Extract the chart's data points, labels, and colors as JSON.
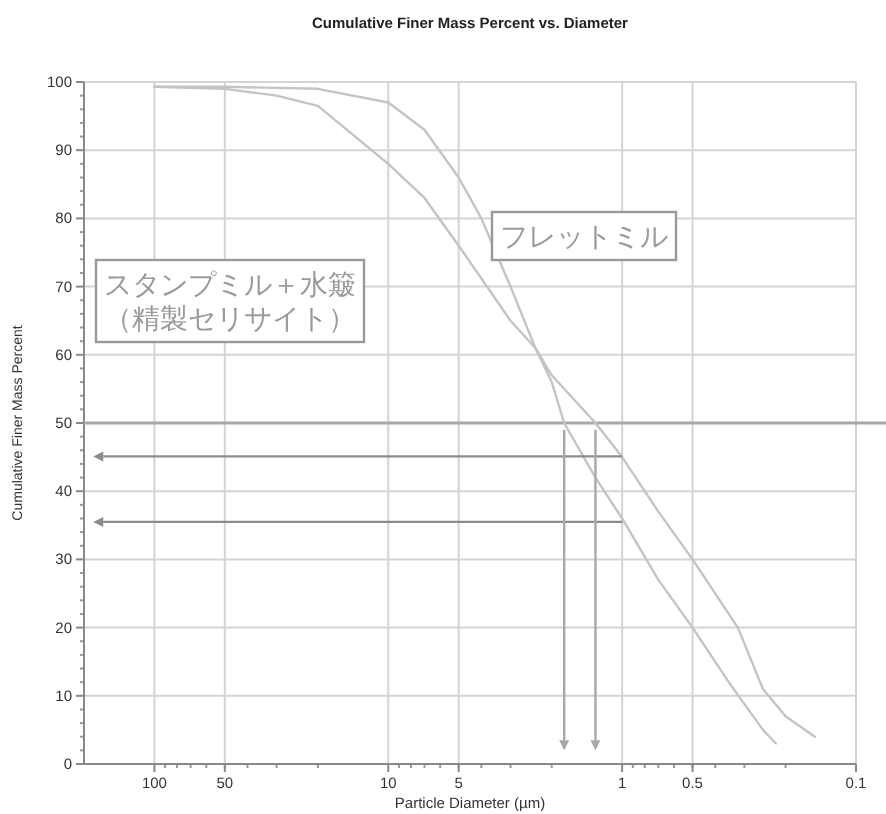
{
  "chart_data": {
    "type": "line",
    "title": "Cumulative Finer Mass Percent vs. Diameter",
    "xlabel": "Particle Diameter (µm)",
    "ylabel": "Cumulative Finer Mass Percent",
    "log": "x",
    "xlim": [
      200,
      0.1
    ],
    "xticks": [
      100,
      50,
      10,
      5,
      1,
      0.5,
      0.1
    ],
    "ylim": [
      0,
      100
    ],
    "yticks": [
      0,
      10,
      20,
      30,
      40,
      50,
      60,
      70,
      80,
      90,
      100
    ],
    "grid": true,
    "marker": "none",
    "line_style": "solid",
    "annotations": [
      "スタンプミル＋水簸",
      "（精製セリサイト）",
      "フレットミル"
    ],
    "ref_lines": [
      {
        "axis": "y",
        "value": 50,
        "color": "#a8a8a8"
      }
    ],
    "series": [
      {
        "color": "#c4c4c4",
        "x": [
          100,
          50,
          20,
          10,
          7,
          5,
          4,
          3,
          2.35,
          2,
          1.77,
          1.3,
          1,
          0.7,
          0.5,
          0.35,
          0.25,
          0.22
        ],
        "values": [
          99.3,
          99.3,
          99,
          97,
          93,
          86,
          80,
          70,
          61,
          56,
          50,
          42,
          36,
          27,
          20,
          12,
          5,
          3
        ]
      },
      {
        "color": "#c4c4c4",
        "x": [
          100,
          50,
          30,
          20,
          10,
          7,
          5,
          3,
          2.35,
          2,
          1.3,
          1,
          0.7,
          0.5,
          0.32,
          0.25,
          0.2,
          0.15
        ],
        "values": [
          99.3,
          99,
          98,
          96.5,
          88,
          83,
          76,
          65,
          61,
          57,
          50,
          45,
          37,
          30,
          20,
          11,
          7,
          4
        ]
      }
    ]
  }
}
